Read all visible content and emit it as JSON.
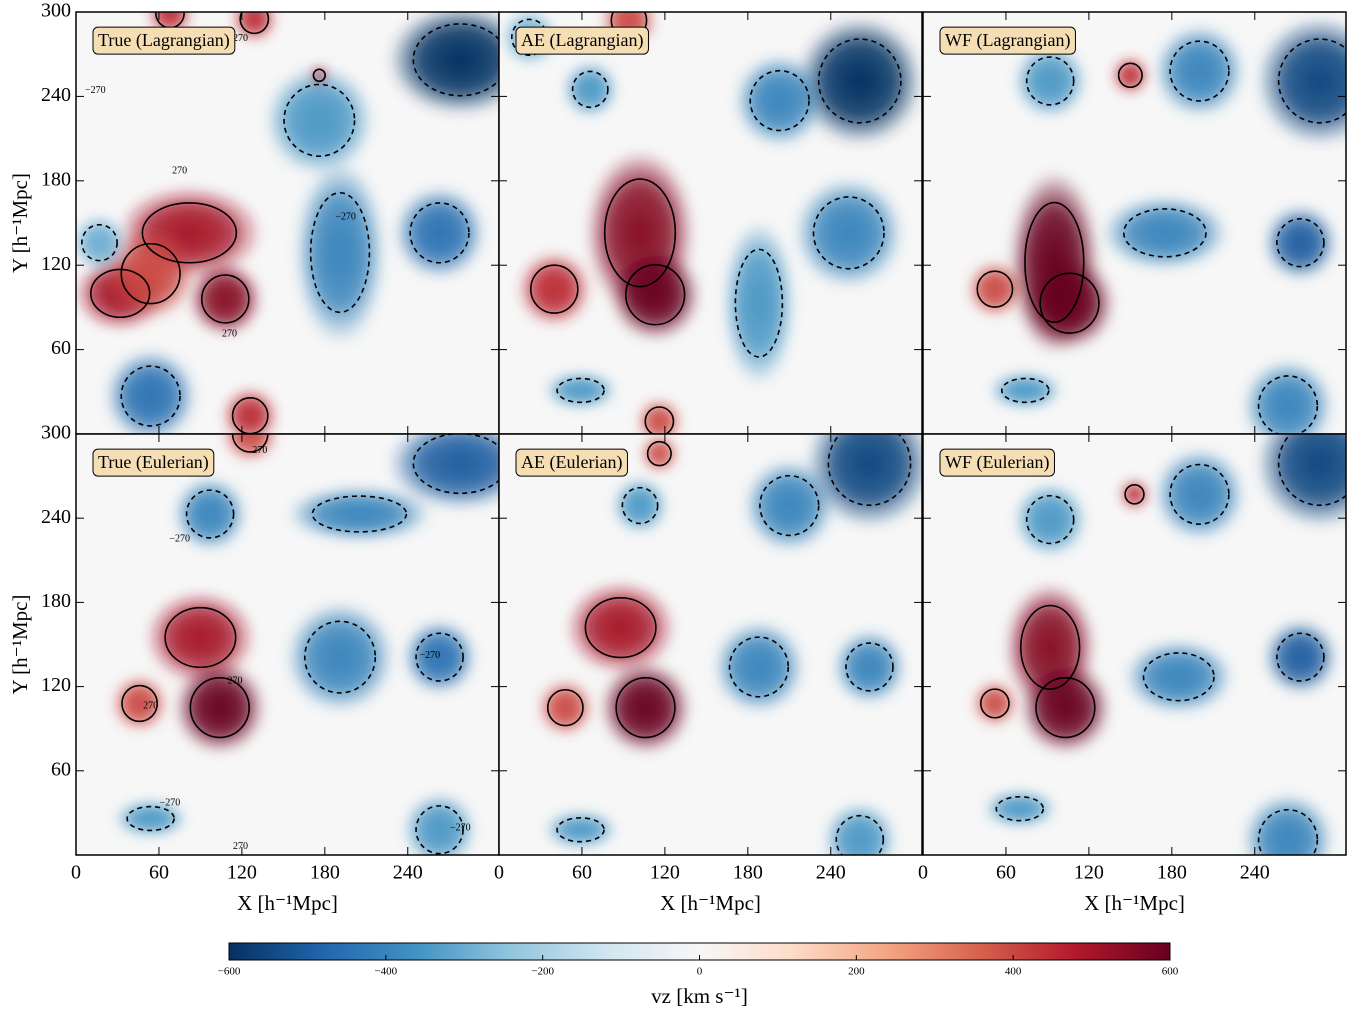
{
  "chart_data": [
    {
      "type": "heatmap",
      "title": "True (Lagrangian)",
      "xlim": [
        0,
        306
      ],
      "ylim": [
        0,
        300
      ],
      "xticks": [
        0,
        60,
        120,
        180,
        240
      ],
      "yticks": [
        60,
        120,
        180,
        240,
        300
      ],
      "ylabel": "Y [h⁻¹Mpc]",
      "features": [
        {
          "x": 82,
          "y": 143,
          "rx": 40,
          "ry": 25,
          "value": 500
        },
        {
          "x": 32,
          "y": 100,
          "rx": 25,
          "ry": 20,
          "value": 500
        },
        {
          "x": 108,
          "y": 96,
          "rx": 20,
          "ry": 20,
          "value": 550
        },
        {
          "x": 54,
          "y": 114,
          "rx": 25,
          "ry": 25,
          "value": 400
        },
        {
          "x": 278,
          "y": 266,
          "rx": 40,
          "ry": 30,
          "value": -600
        },
        {
          "x": 191,
          "y": 129,
          "rx": 25,
          "ry": 50,
          "value": -400
        },
        {
          "x": 263,
          "y": 143,
          "rx": 25,
          "ry": 25,
          "value": -450
        },
        {
          "x": 54,
          "y": 27,
          "rx": 25,
          "ry": 25,
          "value": -450
        },
        {
          "x": 176,
          "y": 223,
          "rx": 30,
          "ry": 30,
          "value": -350
        },
        {
          "x": 126,
          "y": 13,
          "rx": 15,
          "ry": 15,
          "value": 450
        },
        {
          "x": 68,
          "y": 299,
          "rx": 12,
          "ry": 12,
          "value": 450
        },
        {
          "x": 129,
          "y": 295,
          "rx": 12,
          "ry": 12,
          "value": 450
        },
        {
          "x": 176,
          "y": 255,
          "rx": 5,
          "ry": 5,
          "value": 500
        },
        {
          "x": 17,
          "y": 136,
          "rx": 15,
          "ry": 15,
          "value": -300
        }
      ],
      "contour_labels": [
        {
          "x": 119,
          "y": 281,
          "label": "270"
        },
        {
          "x": 75,
          "y": 187,
          "label": "270"
        },
        {
          "x": 14,
          "y": 244,
          "label": "−270"
        },
        {
          "x": 195,
          "y": 154,
          "label": "−270"
        },
        {
          "x": 111,
          "y": 71,
          "label": "270"
        }
      ]
    },
    {
      "type": "heatmap",
      "title": "AE (Lagrangian)",
      "xlim": [
        0,
        306
      ],
      "ylim": [
        0,
        300
      ],
      "xticks": [
        0,
        60,
        120,
        180,
        240
      ],
      "yticks": [
        60,
        120,
        180,
        240,
        300
      ],
      "features": [
        {
          "x": 102,
          "y": 143,
          "rx": 30,
          "ry": 45,
          "value": 550
        },
        {
          "x": 113,
          "y": 99,
          "rx": 25,
          "ry": 25,
          "value": 650
        },
        {
          "x": 40,
          "y": 103,
          "rx": 20,
          "ry": 20,
          "value": 450
        },
        {
          "x": 116,
          "y": 9,
          "rx": 12,
          "ry": 12,
          "value": 400
        },
        {
          "x": 94,
          "y": 294,
          "rx": 15,
          "ry": 15,
          "value": 400
        },
        {
          "x": 261,
          "y": 251,
          "rx": 35,
          "ry": 35,
          "value": -600
        },
        {
          "x": 203,
          "y": 237,
          "rx": 25,
          "ry": 25,
          "value": -400
        },
        {
          "x": 253,
          "y": 143,
          "rx": 30,
          "ry": 30,
          "value": -400
        },
        {
          "x": 59,
          "y": 31,
          "rx": 20,
          "ry": 10,
          "value": -350
        },
        {
          "x": 66,
          "y": 245,
          "rx": 15,
          "ry": 15,
          "value": -350
        },
        {
          "x": 188,
          "y": 93,
          "rx": 20,
          "ry": 45,
          "value": -350
        },
        {
          "x": 22,
          "y": 282,
          "rx": 15,
          "ry": 15,
          "value": -300
        }
      ]
    },
    {
      "type": "heatmap",
      "title": "WF (Lagrangian)",
      "xlim": [
        0,
        306
      ],
      "ylim": [
        0,
        300
      ],
      "xticks": [
        0,
        60,
        120,
        180,
        240
      ],
      "yticks": [
        60,
        120,
        180,
        240,
        300
      ],
      "features": [
        {
          "x": 95,
          "y": 122,
          "rx": 25,
          "ry": 50,
          "value": 600
        },
        {
          "x": 106,
          "y": 93,
          "rx": 25,
          "ry": 25,
          "value": 650
        },
        {
          "x": 52,
          "y": 103,
          "rx": 15,
          "ry": 15,
          "value": 400
        },
        {
          "x": 150,
          "y": 255,
          "rx": 10,
          "ry": 10,
          "value": 450
        },
        {
          "x": 287,
          "y": 251,
          "rx": 35,
          "ry": 35,
          "value": -550
        },
        {
          "x": 200,
          "y": 258,
          "rx": 25,
          "ry": 25,
          "value": -400
        },
        {
          "x": 175,
          "y": 143,
          "rx": 35,
          "ry": 20,
          "value": -400
        },
        {
          "x": 273,
          "y": 136,
          "rx": 20,
          "ry": 20,
          "value": -500
        },
        {
          "x": 92,
          "y": 251,
          "rx": 20,
          "ry": 20,
          "value": -350
        },
        {
          "x": 74,
          "y": 31,
          "rx": 20,
          "ry": 10,
          "value": -350
        },
        {
          "x": 264,
          "y": 20,
          "rx": 25,
          "ry": 25,
          "value": -400
        }
      ]
    },
    {
      "type": "heatmap",
      "title": "True (Eulerian)",
      "xlim": [
        0,
        306
      ],
      "ylim": [
        0,
        300
      ],
      "xticks": [
        0,
        60,
        120,
        180,
        240
      ],
      "yticks": [
        60,
        120,
        180,
        240,
        300
      ],
      "xlabel": "X [h⁻¹Mpc]",
      "ylabel": "Y [h⁻¹Mpc]",
      "features": [
        {
          "x": 90,
          "y": 155,
          "rx": 30,
          "ry": 25,
          "value": 500
        },
        {
          "x": 104,
          "y": 105,
          "rx": 25,
          "ry": 25,
          "value": 600
        },
        {
          "x": 46,
          "y": 108,
          "rx": 15,
          "ry": 15,
          "value": 400
        },
        {
          "x": 126,
          "y": 300,
          "rx": 15,
          "ry": 15,
          "value": 400
        },
        {
          "x": 278,
          "y": 279,
          "rx": 40,
          "ry": 25,
          "value": -500
        },
        {
          "x": 205,
          "y": 243,
          "rx": 40,
          "ry": 15,
          "value": -400
        },
        {
          "x": 97,
          "y": 243,
          "rx": 20,
          "ry": 20,
          "value": -400
        },
        {
          "x": 191,
          "y": 141,
          "rx": 30,
          "ry": 30,
          "value": -400
        },
        {
          "x": 263,
          "y": 141,
          "rx": 20,
          "ry": 20,
          "value": -450
        },
        {
          "x": 54,
          "y": 26,
          "rx": 20,
          "ry": 10,
          "value": -350
        },
        {
          "x": 263,
          "y": 18,
          "rx": 20,
          "ry": 20,
          "value": -350
        }
      ],
      "contour_labels": [
        {
          "x": 133,
          "y": 288,
          "label": "270"
        },
        {
          "x": 75,
          "y": 225,
          "label": "−270"
        },
        {
          "x": 256,
          "y": 142,
          "label": "−270"
        },
        {
          "x": 115,
          "y": 124,
          "label": "270"
        },
        {
          "x": 54,
          "y": 106,
          "label": "270"
        },
        {
          "x": 68,
          "y": 37,
          "label": "−270"
        },
        {
          "x": 119,
          "y": 6,
          "label": "270"
        },
        {
          "x": 278,
          "y": 19,
          "label": "−270"
        }
      ]
    },
    {
      "type": "heatmap",
      "title": "AE (Eulerian)",
      "xlim": [
        0,
        306
      ],
      "ylim": [
        0,
        300
      ],
      "xticks": [
        0,
        60,
        120,
        180,
        240
      ],
      "yticks": [
        60,
        120,
        180,
        240,
        300
      ],
      "xlabel": "X [h⁻¹Mpc]",
      "features": [
        {
          "x": 88,
          "y": 162,
          "rx": 30,
          "ry": 25,
          "value": 500
        },
        {
          "x": 106,
          "y": 105,
          "rx": 25,
          "ry": 25,
          "value": 600
        },
        {
          "x": 48,
          "y": 105,
          "rx": 15,
          "ry": 15,
          "value": 400
        },
        {
          "x": 116,
          "y": 286,
          "rx": 10,
          "ry": 10,
          "value": 400
        },
        {
          "x": 268,
          "y": 279,
          "rx": 35,
          "ry": 35,
          "value": -550
        },
        {
          "x": 210,
          "y": 249,
          "rx": 25,
          "ry": 25,
          "value": -400
        },
        {
          "x": 102,
          "y": 249,
          "rx": 15,
          "ry": 15,
          "value": -350
        },
        {
          "x": 188,
          "y": 134,
          "rx": 25,
          "ry": 25,
          "value": -400
        },
        {
          "x": 268,
          "y": 134,
          "rx": 20,
          "ry": 20,
          "value": -400
        },
        {
          "x": 59,
          "y": 18,
          "rx": 20,
          "ry": 10,
          "value": -350
        },
        {
          "x": 261,
          "y": 11,
          "rx": 20,
          "ry": 20,
          "value": -350
        }
      ]
    },
    {
      "type": "heatmap",
      "title": "WF (Eulerian)",
      "xlim": [
        0,
        306
      ],
      "ylim": [
        0,
        300
      ],
      "xticks": [
        0,
        60,
        120,
        180,
        240
      ],
      "yticks": [
        60,
        120,
        180,
        240,
        300
      ],
      "xlabel": "X [h⁻¹Mpc]",
      "features": [
        {
          "x": 92,
          "y": 148,
          "rx": 25,
          "ry": 35,
          "value": 550
        },
        {
          "x": 103,
          "y": 105,
          "rx": 25,
          "ry": 25,
          "value": 650
        },
        {
          "x": 52,
          "y": 108,
          "rx": 12,
          "ry": 12,
          "value": 400
        },
        {
          "x": 153,
          "y": 257,
          "rx": 8,
          "ry": 8,
          "value": 450
        },
        {
          "x": 287,
          "y": 279,
          "rx": 35,
          "ry": 35,
          "value": -550
        },
        {
          "x": 200,
          "y": 257,
          "rx": 25,
          "ry": 25,
          "value": -400
        },
        {
          "x": 92,
          "y": 239,
          "rx": 20,
          "ry": 20,
          "value": -350
        },
        {
          "x": 185,
          "y": 127,
          "rx": 30,
          "ry": 20,
          "value": -400
        },
        {
          "x": 273,
          "y": 141,
          "rx": 20,
          "ry": 20,
          "value": -500
        },
        {
          "x": 70,
          "y": 33,
          "rx": 20,
          "ry": 10,
          "value": -350
        },
        {
          "x": 264,
          "y": 11,
          "rx": 25,
          "ry": 25,
          "value": -400
        }
      ]
    },
    {
      "type": "colorbar",
      "label": "vz [km s⁻¹]",
      "lim": [
        -600,
        600
      ],
      "contour_level": 270,
      "ticks": [
        {
          "value": -600,
          "label": "−600"
        },
        {
          "value": -400,
          "label": "−400"
        },
        {
          "value": -200,
          "label": "−200"
        },
        0,
        200,
        400,
        600
      ],
      "colormap": [
        "#053061",
        "#2166ac",
        "#4393c3",
        "#92c5de",
        "#d1e5f0",
        "#f7f7f7",
        "#fddbc7",
        "#f4a582",
        "#d6604d",
        "#b2182b",
        "#67001f"
      ]
    }
  ]
}
